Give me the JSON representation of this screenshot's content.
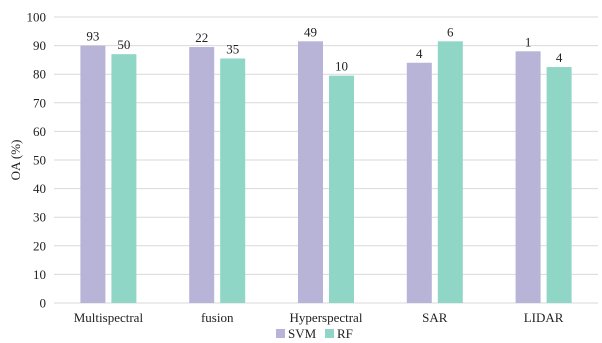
{
  "chart_data": {
    "type": "bar",
    "title": "",
    "xlabel": "",
    "ylabel": "OA (%)",
    "ylim": [
      0,
      100
    ],
    "yticks": [
      0,
      10,
      20,
      30,
      40,
      50,
      60,
      70,
      80,
      90,
      100
    ],
    "grid": "horizontal",
    "legend_position": "bottom",
    "categories": [
      "Multispectral",
      "fusion",
      "Hyperspectral",
      "SAR",
      "LIDAR"
    ],
    "series": [
      {
        "name": "SVM",
        "color": "#b8b4d8",
        "values": [
          90,
          89.5,
          91.5,
          84,
          88
        ],
        "labels": [
          "93",
          "22",
          "49",
          "4",
          "1"
        ]
      },
      {
        "name": "RF",
        "color": "#8fd6c6",
        "values": [
          87,
          85.5,
          79.5,
          91.5,
          82.5
        ],
        "labels": [
          "50",
          "35",
          "10",
          "6",
          "4"
        ]
      }
    ]
  }
}
